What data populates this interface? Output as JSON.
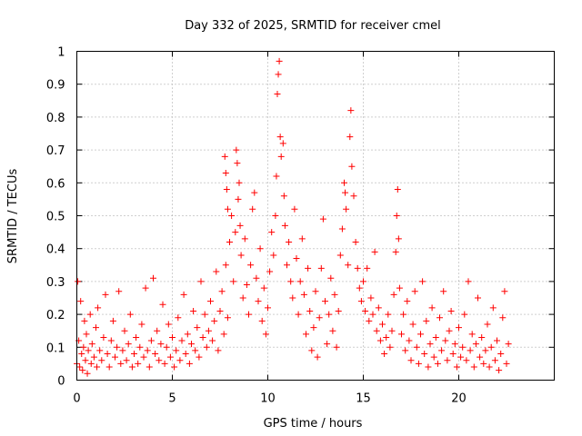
{
  "chart_data": {
    "type": "scatter",
    "title": "Day 332 of 2025, SRMTID for receiver cmel",
    "xlabel": "GPS time / hours",
    "ylabel": "SRMTID / TECUs",
    "xlim": [
      0,
      25
    ],
    "ylim": [
      0,
      1
    ],
    "xticks": [
      0,
      5,
      10,
      15,
      20
    ],
    "yticks": [
      0,
      0.1,
      0.2,
      0.3,
      0.4,
      0.5,
      0.6,
      0.7,
      0.8,
      0.9,
      1
    ],
    "xtick_labels": [
      "0",
      "5",
      "10",
      "15",
      "20"
    ],
    "ytick_labels": [
      "0",
      "0.1",
      "0.2",
      "0.3",
      "0.4",
      "0.5",
      "0.6",
      "0.7",
      "0.8",
      "0.9",
      "1"
    ],
    "grid": true,
    "marker": "+",
    "color": "#ff0000",
    "series": [
      {
        "name": "SRMTID",
        "points": [
          [
            0.0,
            0.05
          ],
          [
            0.05,
            0.3
          ],
          [
            0.1,
            0.12
          ],
          [
            0.15,
            0.04
          ],
          [
            0.2,
            0.24
          ],
          [
            0.25,
            0.08
          ],
          [
            0.3,
            0.03
          ],
          [
            0.35,
            0.1
          ],
          [
            0.4,
            0.18
          ],
          [
            0.45,
            0.06
          ],
          [
            0.5,
            0.14
          ],
          [
            0.55,
            0.02
          ],
          [
            0.6,
            0.09
          ],
          [
            0.7,
            0.2
          ],
          [
            0.75,
            0.05
          ],
          [
            0.8,
            0.11
          ],
          [
            0.9,
            0.07
          ],
          [
            1.0,
            0.16
          ],
          [
            1.05,
            0.04
          ],
          [
            1.1,
            0.22
          ],
          [
            1.2,
            0.09
          ],
          [
            1.3,
            0.06
          ],
          [
            1.4,
            0.13
          ],
          [
            1.5,
            0.26
          ],
          [
            1.6,
            0.08
          ],
          [
            1.7,
            0.04
          ],
          [
            1.8,
            0.12
          ],
          [
            1.9,
            0.18
          ],
          [
            2.0,
            0.07
          ],
          [
            2.1,
            0.1
          ],
          [
            2.2,
            0.27
          ],
          [
            2.3,
            0.05
          ],
          [
            2.4,
            0.09
          ],
          [
            2.5,
            0.15
          ],
          [
            2.6,
            0.06
          ],
          [
            2.7,
            0.11
          ],
          [
            2.8,
            0.2
          ],
          [
            2.9,
            0.04
          ],
          [
            3.0,
            0.08
          ],
          [
            3.1,
            0.13
          ],
          [
            3.2,
            0.05
          ],
          [
            3.3,
            0.1
          ],
          [
            3.4,
            0.17
          ],
          [
            3.5,
            0.07
          ],
          [
            3.6,
            0.28
          ],
          [
            3.7,
            0.09
          ],
          [
            3.8,
            0.04
          ],
          [
            3.9,
            0.12
          ],
          [
            4.0,
            0.31
          ],
          [
            4.1,
            0.08
          ],
          [
            4.2,
            0.15
          ],
          [
            4.3,
            0.06
          ],
          [
            4.4,
            0.11
          ],
          [
            4.5,
            0.23
          ],
          [
            4.6,
            0.05
          ],
          [
            4.7,
            0.1
          ],
          [
            4.8,
            0.17
          ],
          [
            4.9,
            0.07
          ],
          [
            5.0,
            0.13
          ],
          [
            5.1,
            0.04
          ],
          [
            5.2,
            0.09
          ],
          [
            5.3,
            0.19
          ],
          [
            5.4,
            0.06
          ],
          [
            5.5,
            0.12
          ],
          [
            5.6,
            0.26
          ],
          [
            5.7,
            0.08
          ],
          [
            5.8,
            0.14
          ],
          [
            5.9,
            0.05
          ],
          [
            6.0,
            0.11
          ],
          [
            6.1,
            0.21
          ],
          [
            6.2,
            0.09
          ],
          [
            6.3,
            0.16
          ],
          [
            6.4,
            0.07
          ],
          [
            6.5,
            0.3
          ],
          [
            6.6,
            0.13
          ],
          [
            6.7,
            0.2
          ],
          [
            6.8,
            0.1
          ],
          [
            6.9,
            0.15
          ],
          [
            7.0,
            0.24
          ],
          [
            7.1,
            0.12
          ],
          [
            7.2,
            0.18
          ],
          [
            7.3,
            0.33
          ],
          [
            7.4,
            0.09
          ],
          [
            7.5,
            0.21
          ],
          [
            7.6,
            0.27
          ],
          [
            7.7,
            0.14
          ],
          [
            7.8,
            0.35
          ],
          [
            7.9,
            0.19
          ],
          [
            7.75,
            0.68
          ],
          [
            7.8,
            0.63
          ],
          [
            7.85,
            0.58
          ],
          [
            7.9,
            0.52
          ],
          [
            8.0,
            0.42
          ],
          [
            8.1,
            0.5
          ],
          [
            8.2,
            0.3
          ],
          [
            8.3,
            0.45
          ],
          [
            8.35,
            0.7
          ],
          [
            8.4,
            0.66
          ],
          [
            8.45,
            0.55
          ],
          [
            8.5,
            0.6
          ],
          [
            8.55,
            0.47
          ],
          [
            8.6,
            0.38
          ],
          [
            8.7,
            0.25
          ],
          [
            8.8,
            0.43
          ],
          [
            8.9,
            0.29
          ],
          [
            9.0,
            0.2
          ],
          [
            9.1,
            0.35
          ],
          [
            9.2,
            0.52
          ],
          [
            9.3,
            0.57
          ],
          [
            9.4,
            0.31
          ],
          [
            9.5,
            0.24
          ],
          [
            9.6,
            0.4
          ],
          [
            9.7,
            0.18
          ],
          [
            9.8,
            0.28
          ],
          [
            9.9,
            0.14
          ],
          [
            10.0,
            0.22
          ],
          [
            10.1,
            0.33
          ],
          [
            10.2,
            0.45
          ],
          [
            10.3,
            0.38
          ],
          [
            10.4,
            0.5
          ],
          [
            10.45,
            0.62
          ],
          [
            10.5,
            0.87
          ],
          [
            10.55,
            0.93
          ],
          [
            10.6,
            0.97
          ],
          [
            10.65,
            0.74
          ],
          [
            10.7,
            0.68
          ],
          [
            10.8,
            0.72
          ],
          [
            10.85,
            0.56
          ],
          [
            10.9,
            0.47
          ],
          [
            11.0,
            0.35
          ],
          [
            11.1,
            0.42
          ],
          [
            11.2,
            0.3
          ],
          [
            11.3,
            0.25
          ],
          [
            11.4,
            0.52
          ],
          [
            11.5,
            0.37
          ],
          [
            11.6,
            0.2
          ],
          [
            11.7,
            0.3
          ],
          [
            11.8,
            0.43
          ],
          [
            11.9,
            0.26
          ],
          [
            12.0,
            0.14
          ],
          [
            12.1,
            0.34
          ],
          [
            12.2,
            0.21
          ],
          [
            12.3,
            0.09
          ],
          [
            12.4,
            0.16
          ],
          [
            12.5,
            0.27
          ],
          [
            12.6,
            0.07
          ],
          [
            12.7,
            0.19
          ],
          [
            12.8,
            0.34
          ],
          [
            12.9,
            0.49
          ],
          [
            13.0,
            0.24
          ],
          [
            13.1,
            0.11
          ],
          [
            13.2,
            0.2
          ],
          [
            13.3,
            0.31
          ],
          [
            13.4,
            0.15
          ],
          [
            13.5,
            0.26
          ],
          [
            13.6,
            0.1
          ],
          [
            13.7,
            0.21
          ],
          [
            13.8,
            0.38
          ],
          [
            13.9,
            0.46
          ],
          [
            14.0,
            0.6
          ],
          [
            14.05,
            0.57
          ],
          [
            14.1,
            0.52
          ],
          [
            14.2,
            0.35
          ],
          [
            14.3,
            0.74
          ],
          [
            14.35,
            0.82
          ],
          [
            14.4,
            0.65
          ],
          [
            14.5,
            0.56
          ],
          [
            14.6,
            0.42
          ],
          [
            14.7,
            0.34
          ],
          [
            14.8,
            0.28
          ],
          [
            14.9,
            0.24
          ],
          [
            15.0,
            0.3
          ],
          [
            15.1,
            0.21
          ],
          [
            15.2,
            0.34
          ],
          [
            15.3,
            0.18
          ],
          [
            15.4,
            0.25
          ],
          [
            15.5,
            0.2
          ],
          [
            15.6,
            0.39
          ],
          [
            15.7,
            0.15
          ],
          [
            15.8,
            0.22
          ],
          [
            15.9,
            0.12
          ],
          [
            16.0,
            0.17
          ],
          [
            16.1,
            0.08
          ],
          [
            16.2,
            0.13
          ],
          [
            16.3,
            0.2
          ],
          [
            16.4,
            0.1
          ],
          [
            16.5,
            0.15
          ],
          [
            16.6,
            0.26
          ],
          [
            16.7,
            0.39
          ],
          [
            16.75,
            0.5
          ],
          [
            16.8,
            0.58
          ],
          [
            16.85,
            0.43
          ],
          [
            16.9,
            0.28
          ],
          [
            17.0,
            0.14
          ],
          [
            17.1,
            0.2
          ],
          [
            17.2,
            0.09
          ],
          [
            17.3,
            0.24
          ],
          [
            17.4,
            0.12
          ],
          [
            17.5,
            0.06
          ],
          [
            17.6,
            0.17
          ],
          [
            17.7,
            0.27
          ],
          [
            17.8,
            0.1
          ],
          [
            17.9,
            0.05
          ],
          [
            18.0,
            0.14
          ],
          [
            18.1,
            0.3
          ],
          [
            18.2,
            0.08
          ],
          [
            18.3,
            0.18
          ],
          [
            18.4,
            0.04
          ],
          [
            18.5,
            0.11
          ],
          [
            18.6,
            0.22
          ],
          [
            18.7,
            0.07
          ],
          [
            18.8,
            0.13
          ],
          [
            18.9,
            0.05
          ],
          [
            19.0,
            0.19
          ],
          [
            19.1,
            0.09
          ],
          [
            19.2,
            0.27
          ],
          [
            19.3,
            0.12
          ],
          [
            19.4,
            0.06
          ],
          [
            19.5,
            0.15
          ],
          [
            19.6,
            0.21
          ],
          [
            19.7,
            0.08
          ],
          [
            19.8,
            0.11
          ],
          [
            19.9,
            0.04
          ],
          [
            20.0,
            0.16
          ],
          [
            20.1,
            0.07
          ],
          [
            20.2,
            0.1
          ],
          [
            20.3,
            0.2
          ],
          [
            20.4,
            0.06
          ],
          [
            20.5,
            0.3
          ],
          [
            20.6,
            0.09
          ],
          [
            20.7,
            0.14
          ],
          [
            20.8,
            0.04
          ],
          [
            20.9,
            0.11
          ],
          [
            21.0,
            0.25
          ],
          [
            21.1,
            0.07
          ],
          [
            21.2,
            0.13
          ],
          [
            21.3,
            0.05
          ],
          [
            21.4,
            0.09
          ],
          [
            21.5,
            0.17
          ],
          [
            21.6,
            0.04
          ],
          [
            21.7,
            0.1
          ],
          [
            21.8,
            0.22
          ],
          [
            21.9,
            0.06
          ],
          [
            22.0,
            0.12
          ],
          [
            22.1,
            0.03
          ],
          [
            22.2,
            0.08
          ],
          [
            22.3,
            0.19
          ],
          [
            22.4,
            0.27
          ],
          [
            22.5,
            0.05
          ],
          [
            22.6,
            0.11
          ]
        ]
      }
    ]
  }
}
